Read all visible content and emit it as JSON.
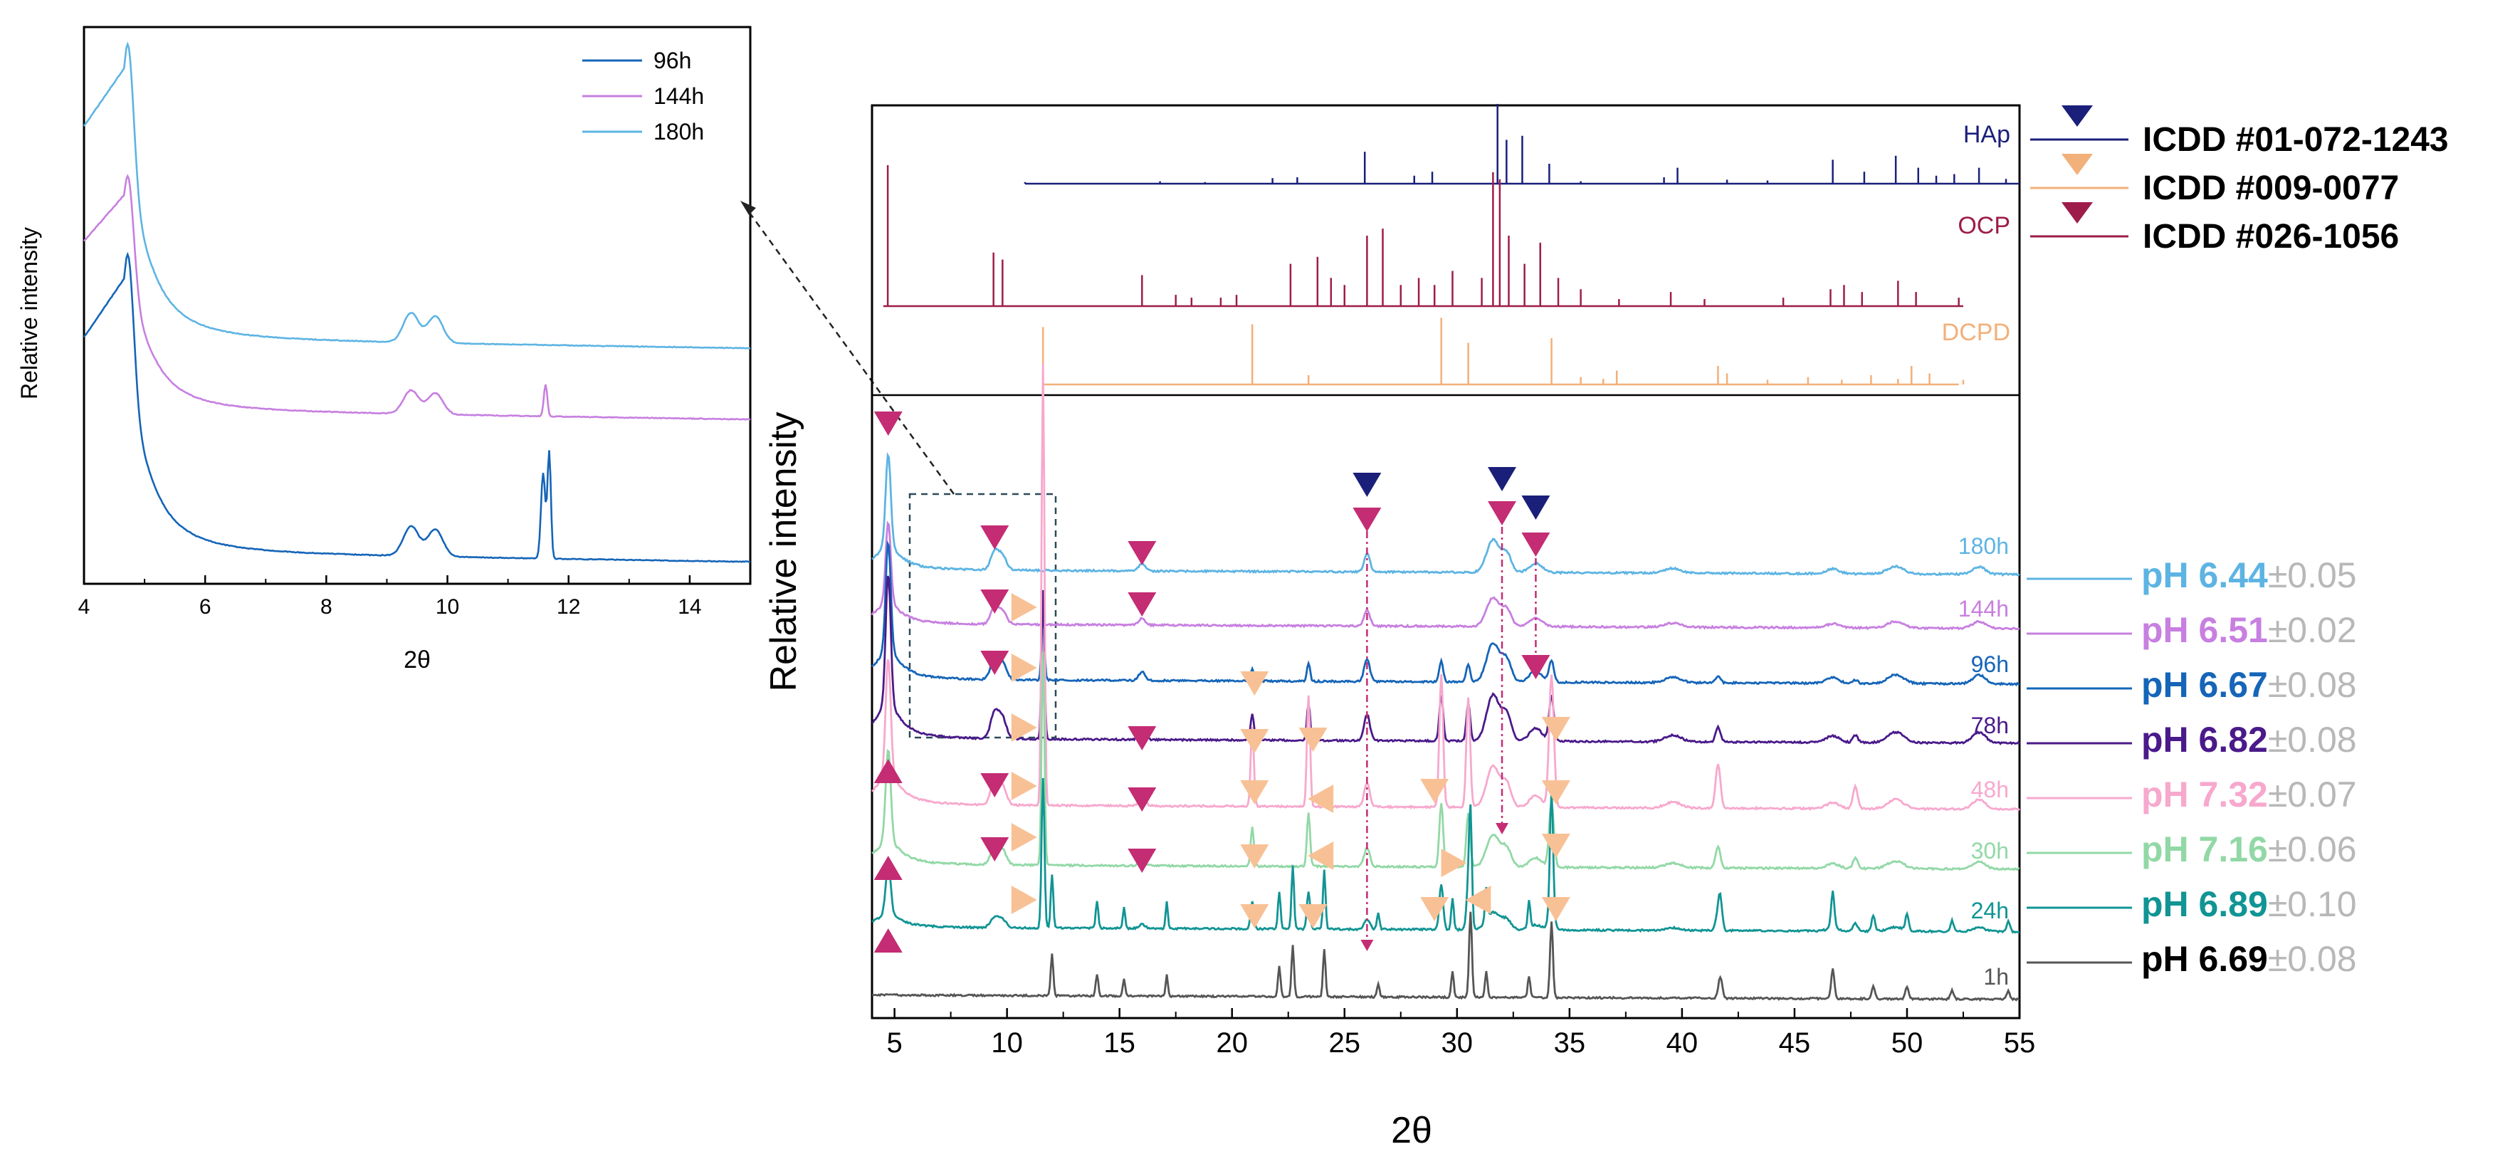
{
  "chart_data": [
    {
      "type": "line",
      "title": "",
      "xlabel": "2θ",
      "ylabel": "Relative intensity",
      "xlim": [
        4,
        15
      ],
      "x_ticks": [
        4,
        6,
        8,
        10,
        12,
        14
      ],
      "legend_position": "top-right",
      "series": [
        {
          "name": "96h",
          "color": "#1565b8"
        },
        {
          "name": "144h",
          "color": "#c77fe0"
        },
        {
          "name": "180h",
          "color": "#5db4e3"
        }
      ]
    },
    {
      "type": "line",
      "title": "",
      "xlabel": "2θ",
      "ylabel": "Relative intensity",
      "xlim": [
        4,
        55
      ],
      "x_ticks": [
        5,
        10,
        15,
        20,
        25,
        30,
        35,
        40,
        45,
        50,
        55
      ],
      "references": [
        {
          "label": "HAp",
          "color": "#1a1f7a",
          "marker": "down-triangle",
          "legend": "ICDD #01-072-1243",
          "peaks": [
            [
              10.8,
              0.02
            ],
            [
              16.8,
              0.03
            ],
            [
              18.8,
              0.02
            ],
            [
              21.8,
              0.07
            ],
            [
              22.9,
              0.08
            ],
            [
              25.9,
              0.4
            ],
            [
              28.1,
              0.1
            ],
            [
              28.9,
              0.15
            ],
            [
              31.8,
              1.0
            ],
            [
              32.2,
              0.55
            ],
            [
              32.9,
              0.6
            ],
            [
              34.1,
              0.25
            ],
            [
              35.5,
              0.03
            ],
            [
              39.2,
              0.08
            ],
            [
              39.8,
              0.2
            ],
            [
              42.0,
              0.05
            ],
            [
              43.8,
              0.04
            ],
            [
              46.7,
              0.3
            ],
            [
              48.1,
              0.15
            ],
            [
              49.5,
              0.35
            ],
            [
              50.5,
              0.2
            ],
            [
              51.3,
              0.1
            ],
            [
              52.1,
              0.12
            ],
            [
              53.2,
              0.2
            ],
            [
              54.4,
              0.06
            ]
          ]
        },
        {
          "label": "OCP",
          "color": "#9e1c4a",
          "marker": "down-triangle",
          "legend": "ICDD #026-1056",
          "peaks": [
            [
              4.7,
              1.0
            ],
            [
              9.4,
              0.38
            ],
            [
              9.8,
              0.33
            ],
            [
              16.0,
              0.22
            ],
            [
              17.5,
              0.08
            ],
            [
              18.2,
              0.06
            ],
            [
              19.5,
              0.06
            ],
            [
              20.2,
              0.08
            ],
            [
              22.6,
              0.3
            ],
            [
              23.8,
              0.35
            ],
            [
              24.4,
              0.2
            ],
            [
              25.0,
              0.15
            ],
            [
              26.0,
              0.5
            ],
            [
              26.7,
              0.55
            ],
            [
              27.5,
              0.15
            ],
            [
              28.3,
              0.2
            ],
            [
              29.0,
              0.15
            ],
            [
              29.8,
              0.25
            ],
            [
              31.1,
              0.2
            ],
            [
              31.6,
              0.95
            ],
            [
              31.9,
              0.9
            ],
            [
              32.3,
              0.5
            ],
            [
              33.0,
              0.3
            ],
            [
              33.7,
              0.45
            ],
            [
              34.5,
              0.2
            ],
            [
              35.5,
              0.12
            ],
            [
              37.2,
              0.05
            ],
            [
              39.5,
              0.1
            ],
            [
              41.0,
              0.05
            ],
            [
              44.5,
              0.06
            ],
            [
              46.6,
              0.12
            ],
            [
              47.2,
              0.15
            ],
            [
              48.0,
              0.1
            ],
            [
              49.6,
              0.18
            ],
            [
              50.4,
              0.1
            ],
            [
              52.3,
              0.06
            ]
          ]
        },
        {
          "label": "DCPD",
          "color": "#f2b07a",
          "marker": "down-triangle",
          "legend": "ICDD #009-0077",
          "peaks": [
            [
              11.6,
              0.62
            ],
            [
              20.9,
              0.65
            ],
            [
              23.4,
              0.1
            ],
            [
              29.3,
              0.72
            ],
            [
              30.5,
              0.45
            ],
            [
              34.2,
              0.5
            ],
            [
              35.5,
              0.08
            ],
            [
              36.5,
              0.06
            ],
            [
              37.1,
              0.15
            ],
            [
              41.6,
              0.2
            ],
            [
              42.0,
              0.12
            ],
            [
              43.8,
              0.05
            ],
            [
              45.6,
              0.08
            ],
            [
              47.1,
              0.05
            ],
            [
              48.4,
              0.1
            ],
            [
              49.6,
              0.06
            ],
            [
              50.2,
              0.2
            ],
            [
              51.0,
              0.12
            ],
            [
              52.5,
              0.05
            ]
          ]
        }
      ],
      "series": [
        {
          "name": "180h",
          "color": "#5db4e3",
          "ph": "6.44",
          "ph_err": "±0.05"
        },
        {
          "name": "144h",
          "color": "#c77fe0",
          "ph": "6.51",
          "ph_err": "±0.02"
        },
        {
          "name": "96h",
          "color": "#1565b8",
          "ph": "6.67",
          "ph_err": "±0.08"
        },
        {
          "name": "78h",
          "color": "#4a1a8a",
          "ph": "6.82",
          "ph_err": "±0.08"
        },
        {
          "name": "48h",
          "color": "#f7a8cd",
          "ph": "7.32",
          "ph_err": "±0.07"
        },
        {
          "name": "30h",
          "color": "#92d8a6",
          "ph": "7.16",
          "ph_err": "±0.06"
        },
        {
          "name": "24h",
          "color": "#119494",
          "ph": "6.89",
          "ph_err": "±0.10"
        },
        {
          "name": "1h",
          "color": "#555555",
          "ph": "6.69",
          "ph_err": "±0.08"
        }
      ],
      "ph_prefix": "pH "
    }
  ]
}
